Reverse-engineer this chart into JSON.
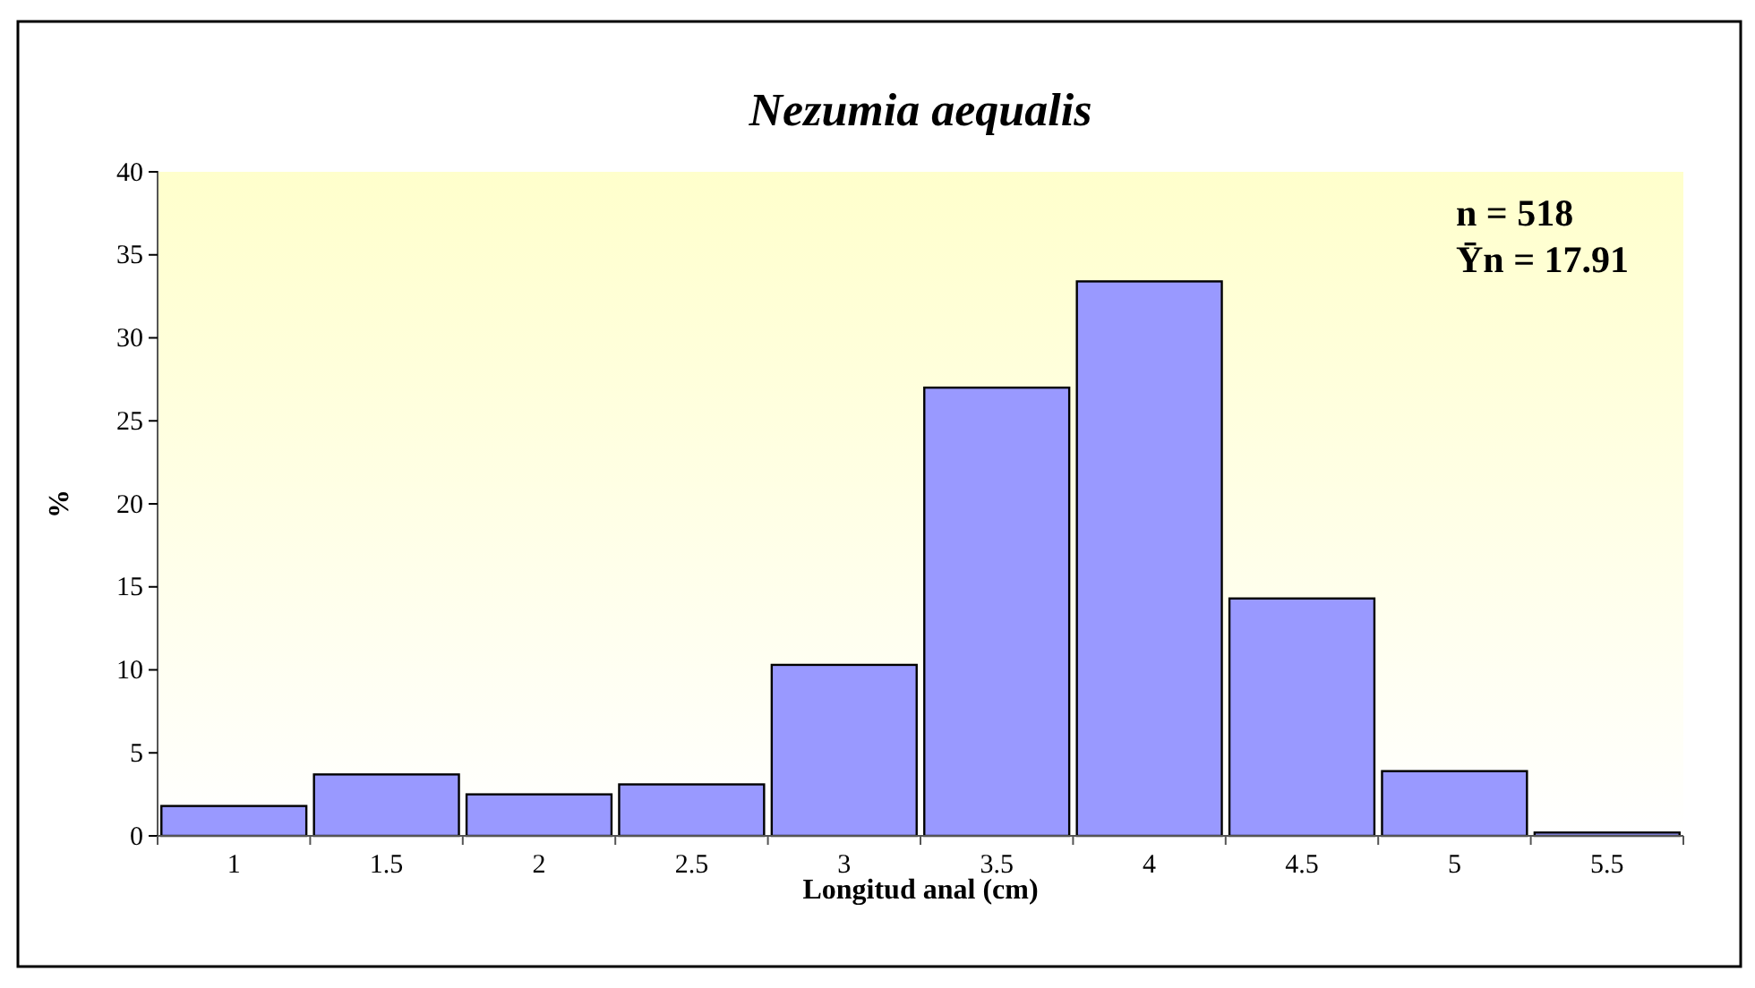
{
  "chart_data": {
    "type": "bar",
    "title": "Nezumia aequalis",
    "xlabel": "Longitud anal (cm)",
    "ylabel": "%",
    "categories": [
      "1",
      "1.5",
      "2",
      "2.5",
      "3",
      "3.5",
      "4",
      "4.5",
      "5",
      "5.5"
    ],
    "values": [
      1.8,
      3.7,
      2.5,
      3.1,
      10.3,
      27.0,
      33.4,
      14.3,
      3.9,
      0.2
    ],
    "color": "#9999ff",
    "ylim": [
      0,
      40
    ],
    "yticks": [
      0,
      5,
      10,
      15,
      20,
      25,
      30,
      35,
      40
    ],
    "grid": false,
    "annotations": [
      "n = 518",
      "Ȳn = 17.91"
    ]
  }
}
